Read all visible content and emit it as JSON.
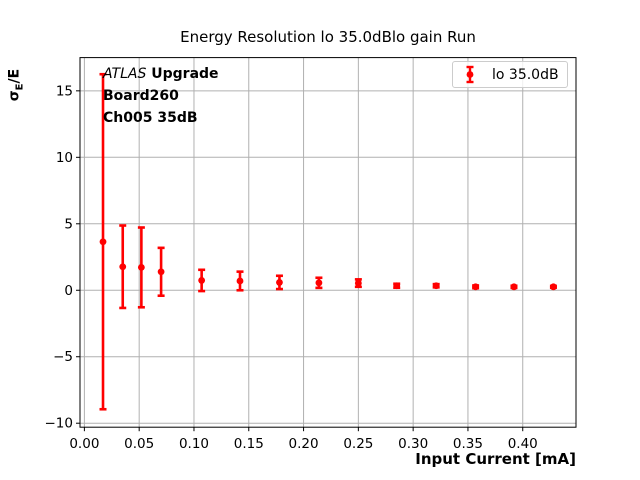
{
  "figure": {
    "background": "#ffffff"
  },
  "chart_data": {
    "type": "scatter",
    "subtype": "errorbar",
    "title": "Energy Resolution lo 35.0dBlo gain Run",
    "xlabel": "Input Current [mA]",
    "ylabel": "σE/E",
    "ylabel_parts": {
      "base": "σ",
      "subscript": "E",
      "suffix": "/E"
    },
    "annotation": {
      "experiment_italic": "ATLAS",
      "experiment_bold": " Upgrade",
      "line2": "Board260",
      "line3": "Ch005 35dB"
    },
    "legend": {
      "position": "upper right",
      "entries": [
        {
          "label": "lo 35.0dB",
          "marker": "errorbar-circle",
          "color": "#ff0000"
        }
      ]
    },
    "series": [
      {
        "name": "lo 35.0dB",
        "color": "#ff0000",
        "marker": "circle",
        "points": [
          {
            "x": 0.017,
            "y": 3.65,
            "yerr": 12.6
          },
          {
            "x": 0.035,
            "y": 1.77,
            "yerr": 3.1
          },
          {
            "x": 0.052,
            "y": 1.72,
            "yerr": 3.0
          },
          {
            "x": 0.07,
            "y": 1.39,
            "yerr": 1.8
          },
          {
            "x": 0.107,
            "y": 0.74,
            "yerr": 0.8
          },
          {
            "x": 0.142,
            "y": 0.7,
            "yerr": 0.7
          },
          {
            "x": 0.178,
            "y": 0.59,
            "yerr": 0.5
          },
          {
            "x": 0.214,
            "y": 0.56,
            "yerr": 0.38
          },
          {
            "x": 0.25,
            "y": 0.54,
            "yerr": 0.28
          },
          {
            "x": 0.285,
            "y": 0.34,
            "yerr": 0.15
          },
          {
            "x": 0.321,
            "y": 0.34,
            "yerr": 0.12
          },
          {
            "x": 0.357,
            "y": 0.26,
            "yerr": 0.1
          },
          {
            "x": 0.392,
            "y": 0.26,
            "yerr": 0.08
          },
          {
            "x": 0.428,
            "y": 0.26,
            "yerr": 0.07
          }
        ]
      }
    ],
    "xlim": [
      -0.004,
      0.4486
    ],
    "ylim": [
      -10.3,
      17.5
    ],
    "xtick_values": [
      0.0,
      0.05,
      0.1,
      0.15,
      0.2,
      0.25,
      0.3,
      0.35,
      0.4
    ],
    "xtick_labels": [
      "0.00",
      "0.05",
      "0.10",
      "0.15",
      "0.20",
      "0.25",
      "0.30",
      "0.35",
      "0.40"
    ],
    "ytick_values": [
      -10,
      -5,
      0,
      5,
      10,
      15
    ],
    "ytick_labels": [
      "−10",
      "−5",
      "0",
      "5",
      "10",
      "15"
    ],
    "grid": true,
    "grid_color": "#b0b0b0",
    "spine_color": "#000000",
    "text_color": "#000000"
  }
}
